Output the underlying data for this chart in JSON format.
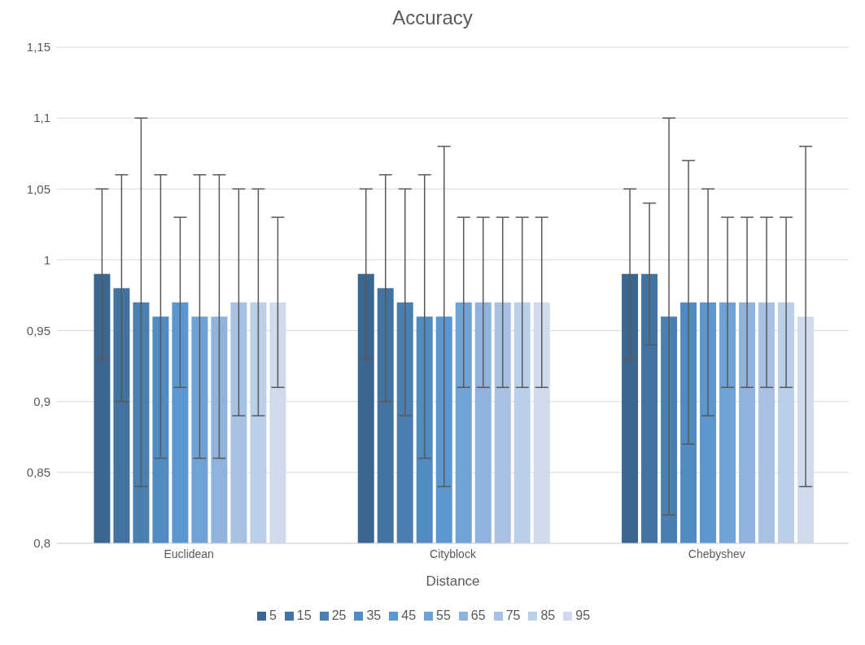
{
  "chart_data": {
    "type": "bar",
    "title": "Accuracy",
    "xlabel": "Distance",
    "categories": [
      "Euclidean",
      "Cityblock",
      "Chebyshev"
    ],
    "series": [
      {
        "name": "5",
        "color": "#3b6690",
        "values": [
          0.99,
          0.99,
          0.99
        ],
        "errors": [
          0.06,
          0.06,
          0.06
        ]
      },
      {
        "name": "15",
        "color": "#4374a1",
        "values": [
          0.98,
          0.98,
          0.99
        ],
        "errors": [
          0.08,
          0.08,
          0.05
        ]
      },
      {
        "name": "25",
        "color": "#4a7fb0",
        "values": [
          0.97,
          0.97,
          0.96
        ],
        "errors": [
          0.13,
          0.08,
          0.14
        ]
      },
      {
        "name": "35",
        "color": "#528bc1",
        "values": [
          0.96,
          0.96,
          0.97
        ],
        "errors": [
          0.1,
          0.1,
          0.1
        ]
      },
      {
        "name": "45",
        "color": "#5b97cf",
        "values": [
          0.97,
          0.96,
          0.97
        ],
        "errors": [
          0.06,
          0.12,
          0.08
        ]
      },
      {
        "name": "55",
        "color": "#70a2d6",
        "values": [
          0.96,
          0.97,
          0.97
        ],
        "errors": [
          0.1,
          0.06,
          0.06
        ]
      },
      {
        "name": "65",
        "color": "#90b3dd",
        "values": [
          0.96,
          0.97,
          0.97
        ],
        "errors": [
          0.1,
          0.06,
          0.06
        ]
      },
      {
        "name": "75",
        "color": "#a8c1e2",
        "values": [
          0.97,
          0.97,
          0.97
        ],
        "errors": [
          0.08,
          0.06,
          0.06
        ]
      },
      {
        "name": "85",
        "color": "#bccfe8",
        "values": [
          0.97,
          0.97,
          0.97
        ],
        "errors": [
          0.08,
          0.06,
          0.06
        ]
      },
      {
        "name": "95",
        "color": "#cfdaed",
        "values": [
          0.97,
          0.97,
          0.96
        ],
        "errors": [
          0.06,
          0.06,
          0.12
        ]
      }
    ],
    "ylim": [
      0.8,
      1.15
    ],
    "yticks": [
      {
        "value": 0.8,
        "label": "0,8"
      },
      {
        "value": 0.85,
        "label": "0,85"
      },
      {
        "value": 0.9,
        "label": "0,9"
      },
      {
        "value": 0.95,
        "label": "0,95"
      },
      {
        "value": 1,
        "label": "1"
      },
      {
        "value": 1.05,
        "label": "1,05"
      },
      {
        "value": 1.1,
        "label": "1,1"
      },
      {
        "value": 1.15,
        "label": "1,15"
      }
    ],
    "grid": "y",
    "legend": "bottom"
  }
}
